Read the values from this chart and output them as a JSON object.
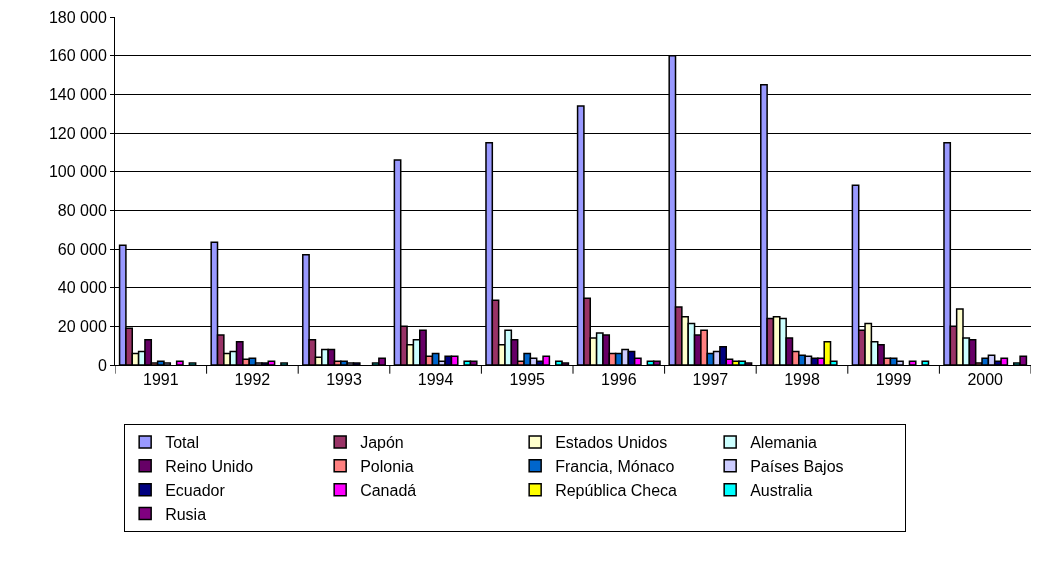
{
  "chart_data": {
    "type": "bar",
    "categories": [
      "1991",
      "1992",
      "1993",
      "1994",
      "1995",
      "1996",
      "1997",
      "1998",
      "1999",
      "2000"
    ],
    "series": [
      {
        "name": "Total",
        "color": "#9999ff",
        "values": [
          62000,
          63500,
          57000,
          106000,
          115000,
          134000,
          160000,
          145000,
          93000,
          115000
        ]
      },
      {
        "name": "Japón",
        "color": "#993366",
        "values": [
          19000,
          15500,
          13000,
          20000,
          33500,
          34500,
          30000,
          24000,
          18000,
          20000
        ]
      },
      {
        "name": "Estados Unidos",
        "color": "#ffffcc",
        "values": [
          6000,
          6000,
          4000,
          10500,
          10500,
          14000,
          25000,
          25000,
          21500,
          29000
        ]
      },
      {
        "name": "Alemania",
        "color": "#ccffff",
        "values": [
          7000,
          7000,
          8000,
          13000,
          18000,
          16500,
          21500,
          24000,
          12000,
          14000
        ]
      },
      {
        "name": "Reino Unido",
        "color": "#660066",
        "values": [
          13000,
          12000,
          8000,
          18000,
          13000,
          15500,
          15500,
          14000,
          10500,
          13000
        ]
      },
      {
        "name": "Polonia",
        "color": "#ff8080",
        "values": [
          1000,
          3000,
          2000,
          4500,
          2000,
          6000,
          18000,
          7000,
          3500,
          1000
        ]
      },
      {
        "name": "Francia, Mónaco",
        "color": "#0066cc",
        "values": [
          2000,
          3500,
          2000,
          6000,
          6000,
          6000,
          6000,
          5000,
          3500,
          3500
        ]
      },
      {
        "name": "Países Bajos",
        "color": "#ccccff",
        "values": [
          1000,
          1000,
          1000,
          2000,
          3500,
          8000,
          7000,
          4500,
          2000,
          5000
        ]
      },
      {
        "name": "Ecuador",
        "color": "#000080",
        "values": [
          null,
          1000,
          1000,
          4500,
          2000,
          7000,
          9500,
          3500,
          null,
          2000
        ]
      },
      {
        "name": "Canadá",
        "color": "#ff00ff",
        "values": [
          2000,
          2000,
          null,
          4500,
          4500,
          3500,
          3000,
          3500,
          2000,
          3500
        ]
      },
      {
        "name": "República Checa",
        "color": "#ffff00",
        "values": [
          null,
          null,
          null,
          null,
          null,
          null,
          2000,
          12000,
          null,
          null
        ]
      },
      {
        "name": "Australia",
        "color": "#00ffff",
        "values": [
          1000,
          1000,
          1000,
          2000,
          2000,
          2000,
          2000,
          2000,
          2000,
          1000
        ]
      },
      {
        "name": "Rusia",
        "color": "#800080",
        "values": [
          null,
          null,
          3500,
          2000,
          1000,
          2000,
          1000,
          null,
          null,
          4500
        ]
      }
    ],
    "ylim": [
      0,
      180000
    ],
    "yticks": [
      0,
      {
        "value": 20000,
        "label": "20 000"
      },
      {
        "value": 40000,
        "label": "40 000"
      },
      {
        "value": 60000,
        "label": "60 000"
      },
      {
        "value": 80000,
        "label": "80 000"
      },
      {
        "value": 100000,
        "label": "100 000"
      },
      {
        "value": 120000,
        "label": "120 000"
      },
      {
        "value": 140000,
        "label": "140 000"
      },
      {
        "value": 160000,
        "label": "160 000"
      },
      {
        "value": 180000,
        "label": "180 000"
      }
    ],
    "grid": "y",
    "legend": "bottom"
  }
}
